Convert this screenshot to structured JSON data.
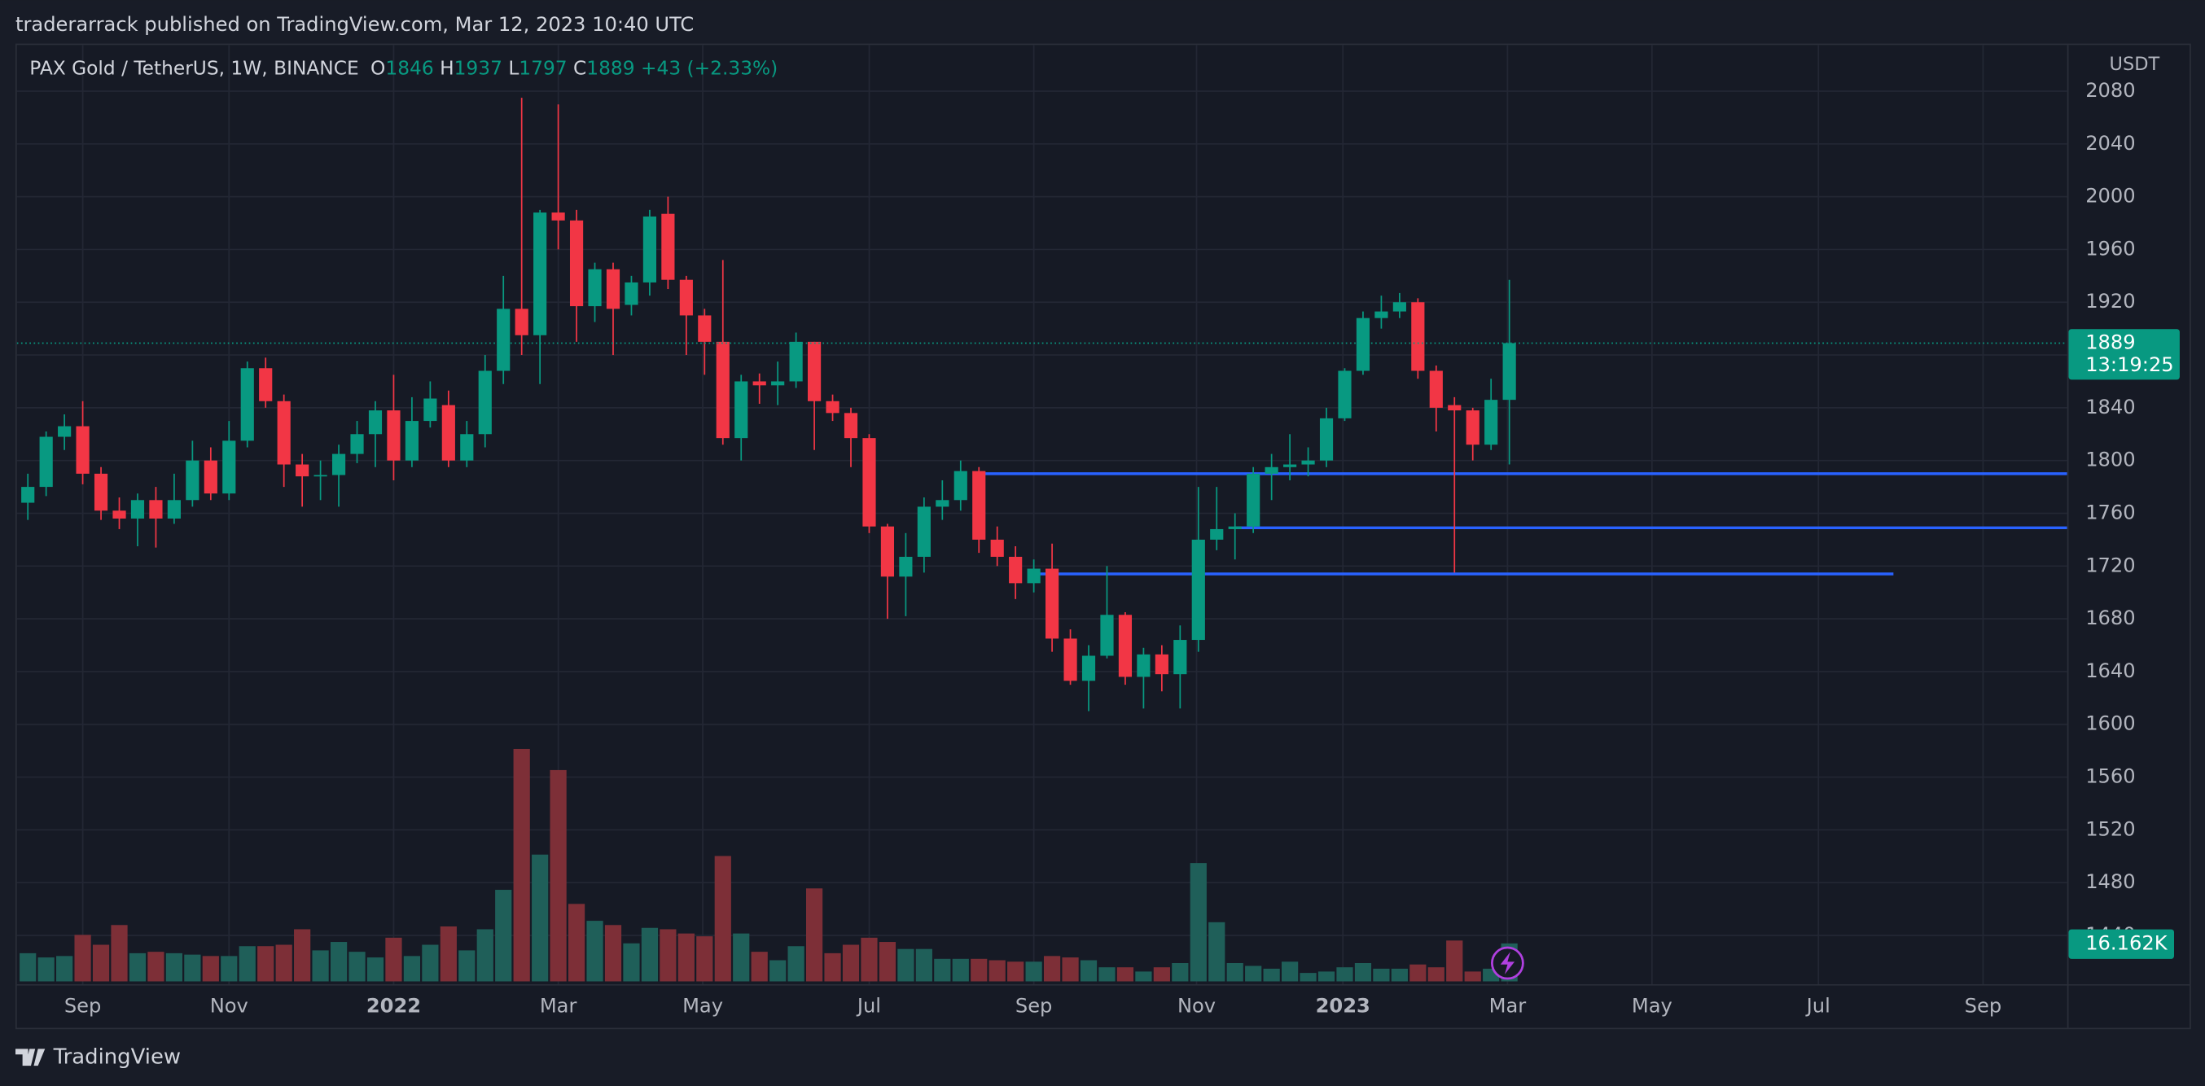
{
  "header": {
    "publisher": "traderarrack published on TradingView.com, Mar 12, 2023 10:40 UTC"
  },
  "footer": {
    "brand": "TradingView"
  },
  "chart_data": {
    "type": "candlestick",
    "title": "PAX Gold / TetherUS, 1W, BINANCE",
    "legend_labels": [
      "O",
      "H",
      "L",
      "C"
    ],
    "change_label": "+43 (+2.33%)",
    "y_axis_label": "USDT",
    "countdown": "13:19:25",
    "up_color": "#089981",
    "down_color": "#f23645",
    "volume_up_color": "#1f5f59",
    "volume_down_color": "#7d2f37",
    "level_color": "#2962ff",
    "grid": true,
    "xlim": [
      -0.6,
      111.5
    ],
    "xticks": [
      {
        "value": 3,
        "label": "Sep"
      },
      {
        "value": 11,
        "label": "Nov"
      },
      {
        "value": 20,
        "label": "2022"
      },
      {
        "value": 29,
        "label": "Mar"
      },
      {
        "value": 36.9,
        "label": "May"
      },
      {
        "value": 46,
        "label": "Jul"
      },
      {
        "value": 55,
        "label": "Sep"
      },
      {
        "value": 63.9,
        "label": "Nov"
      },
      {
        "value": 71.9,
        "label": "2023"
      },
      {
        "value": 80.9,
        "label": "Mar"
      },
      {
        "value": 88.8,
        "label": "May"
      },
      {
        "value": 97.9,
        "label": "Jul"
      },
      {
        "value": 106.9,
        "label": "Sep"
      }
    ],
    "ylim": [
      1403,
      2115
    ],
    "yticks": [
      1440,
      1480,
      1520,
      1560,
      1600,
      1640,
      1680,
      1720,
      1760,
      1800,
      1840,
      1880,
      1920,
      1960,
      2000,
      2040,
      2080
    ],
    "open": [
      1768,
      1780,
      1818,
      1826,
      1790,
      1762,
      1756,
      1770,
      1756,
      1770,
      1800,
      1775,
      1815,
      1870,
      1845,
      1797,
      1788,
      1789,
      1805,
      1820,
      1838,
      1800,
      1830,
      1842,
      1800,
      1820,
      1868,
      1915,
      1895,
      1988,
      1982,
      1917,
      1945,
      1918,
      1935,
      1987,
      1937,
      1910,
      1890,
      1817,
      1860,
      1857,
      1860,
      1890,
      1845,
      1836,
      1817,
      1750,
      1712,
      1727,
      1765,
      1770,
      1792,
      1740,
      1727,
      1707,
      1718,
      1665,
      1633,
      1652,
      1683,
      1636,
      1653,
      1638,
      1664,
      1740,
      1748,
      1750,
      1790,
      1795,
      1797,
      1800,
      1832,
      1868,
      1908,
      1913,
      1920,
      1868,
      1842,
      1838,
      1812,
      1846
    ],
    "high": [
      1790,
      1822,
      1835,
      1845,
      1795,
      1772,
      1775,
      1780,
      1790,
      1815,
      1810,
      1830,
      1875,
      1878,
      1850,
      1805,
      1800,
      1812,
      1830,
      1845,
      1865,
      1848,
      1860,
      1853,
      1830,
      1880,
      1940,
      2075,
      1990,
      2070,
      1990,
      1950,
      1950,
      1940,
      1990,
      2000,
      1940,
      1915,
      1952,
      1865,
      1866,
      1875,
      1897,
      1890,
      1850,
      1840,
      1820,
      1752,
      1745,
      1772,
      1785,
      1800,
      1795,
      1750,
      1735,
      1725,
      1737,
      1672,
      1660,
      1720,
      1685,
      1658,
      1660,
      1675,
      1780,
      1780,
      1760,
      1795,
      1805,
      1820,
      1810,
      1840,
      1870,
      1913,
      1925,
      1927,
      1923,
      1872,
      1848,
      1840,
      1862,
      1937
    ],
    "low": [
      1755,
      1773,
      1808,
      1782,
      1755,
      1748,
      1735,
      1734,
      1752,
      1765,
      1770,
      1770,
      1810,
      1840,
      1780,
      1765,
      1770,
      1765,
      1798,
      1795,
      1785,
      1795,
      1825,
      1795,
      1795,
      1810,
      1858,
      1880,
      1858,
      1960,
      1890,
      1905,
      1880,
      1910,
      1925,
      1930,
      1880,
      1865,
      1812,
      1800,
      1843,
      1842,
      1855,
      1808,
      1830,
      1795,
      1745,
      1680,
      1682,
      1715,
      1755,
      1762,
      1730,
      1720,
      1695,
      1700,
      1655,
      1630,
      1610,
      1650,
      1630,
      1612,
      1625,
      1612,
      1655,
      1732,
      1725,
      1745,
      1770,
      1785,
      1788,
      1795,
      1830,
      1865,
      1900,
      1908,
      1862,
      1822,
      1715,
      1800,
      1808,
      1797
    ],
    "close": [
      1780,
      1818,
      1826,
      1790,
      1762,
      1756,
      1770,
      1756,
      1770,
      1800,
      1775,
      1815,
      1870,
      1845,
      1797,
      1788,
      1789,
      1805,
      1820,
      1838,
      1800,
      1830,
      1847,
      1800,
      1820,
      1868,
      1915,
      1895,
      1988,
      1982,
      1917,
      1945,
      1915,
      1935,
      1985,
      1937,
      1910,
      1890,
      1817,
      1860,
      1857,
      1860,
      1890,
      1845,
      1836,
      1817,
      1750,
      1712,
      1727,
      1765,
      1770,
      1792,
      1740,
      1727,
      1707,
      1718,
      1665,
      1633,
      1652,
      1683,
      1636,
      1653,
      1638,
      1664,
      1740,
      1748,
      1750,
      1790,
      1795,
      1797,
      1800,
      1832,
      1868,
      1908,
      1913,
      1920,
      1868,
      1840,
      1838,
      1812,
      1846,
      1889
    ],
    "volume": {
      "ylim": [
        0,
        100000
      ],
      "values": [
        12000,
        10200,
        10800,
        19800,
        15600,
        24000,
        12000,
        12600,
        12000,
        11400,
        10800,
        10800,
        15000,
        15000,
        15600,
        22200,
        13200,
        16800,
        12600,
        10200,
        18600,
        10800,
        15600,
        23400,
        13200,
        22200,
        39000,
        99000,
        54000,
        90000,
        33000,
        25800,
        24000,
        16200,
        22800,
        22200,
        20400,
        19200,
        53400,
        20400,
        12600,
        9000,
        15000,
        39600,
        12000,
        15600,
        18600,
        16800,
        13800,
        13800,
        9600,
        9600,
        9600,
        9000,
        8400,
        8400,
        10800,
        10200,
        9000,
        6000,
        6000,
        4200,
        6000,
        7800,
        50400,
        25200,
        7800,
        6600,
        5400,
        8400,
        3600,
        4200,
        6000,
        7800,
        5400,
        5400,
        7200,
        6000,
        17400,
        4200,
        5400,
        16162
      ],
      "last_label": "16.162K"
    },
    "levels": [
      {
        "price": 1790,
        "from": 52,
        "to": 111.5
      },
      {
        "price": 1749,
        "from": 66,
        "to": 111.5
      },
      {
        "price": 1714,
        "from": 55,
        "to": 102
      }
    ]
  }
}
